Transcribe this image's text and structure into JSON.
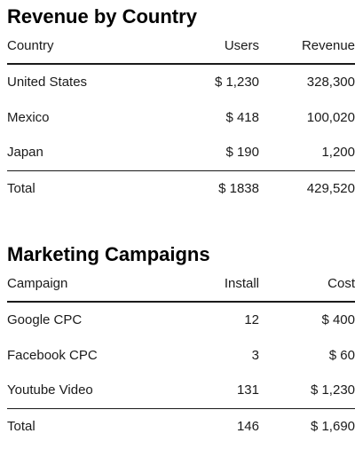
{
  "revenue": {
    "title": "Revenue by Country",
    "columns": [
      "Country",
      "Users",
      "Revenue"
    ],
    "rows": [
      [
        "United States",
        "$ 1,230",
        "328,300"
      ],
      [
        "Mexico",
        "$ 418",
        "100,020"
      ],
      [
        "Japan",
        "$ 190",
        "1,200"
      ]
    ],
    "total": [
      "Total",
      "$ 1838",
      "429,520"
    ]
  },
  "marketing": {
    "title": "Marketing Campaigns",
    "columns": [
      "Campaign",
      "Install",
      "Cost"
    ],
    "rows": [
      [
        "Google CPC",
        "12",
        "$ 400"
      ],
      [
        "Facebook CPC",
        "3",
        "$ 60"
      ],
      [
        "Youtube Video",
        "131",
        "$ 1,230"
      ]
    ],
    "total": [
      "Total",
      "146",
      "$ 1,690"
    ]
  }
}
